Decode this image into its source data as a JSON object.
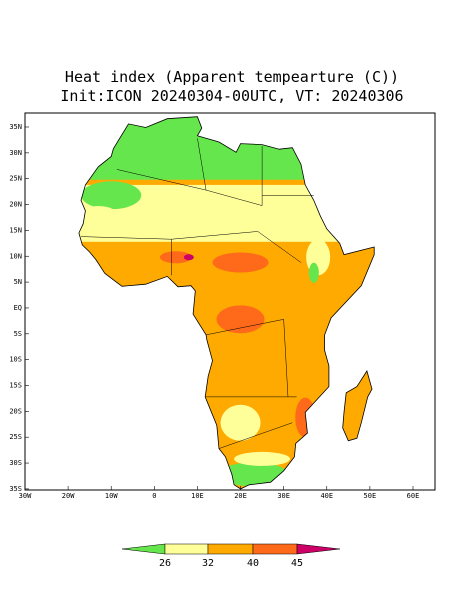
{
  "header": {
    "title": "Heat index (Apparent tempearture (C))",
    "subtitle": "Init:ICON 20240304-00UTC, VT: 20240306"
  },
  "map": {
    "lat_labels": [
      "35N",
      "30N",
      "25N",
      "20N",
      "15N",
      "10N",
      "5N",
      "EQ",
      "5S",
      "10S",
      "15S",
      "20S",
      "25S",
      "30S",
      "35S"
    ],
    "lon_labels": [
      "30W",
      "20W",
      "10W",
      "0",
      "10E",
      "20E",
      "30E",
      "40E",
      "50E",
      "60E"
    ]
  },
  "colorbar": {
    "labels": [
      "26",
      "32",
      "40",
      "45"
    ]
  }
}
